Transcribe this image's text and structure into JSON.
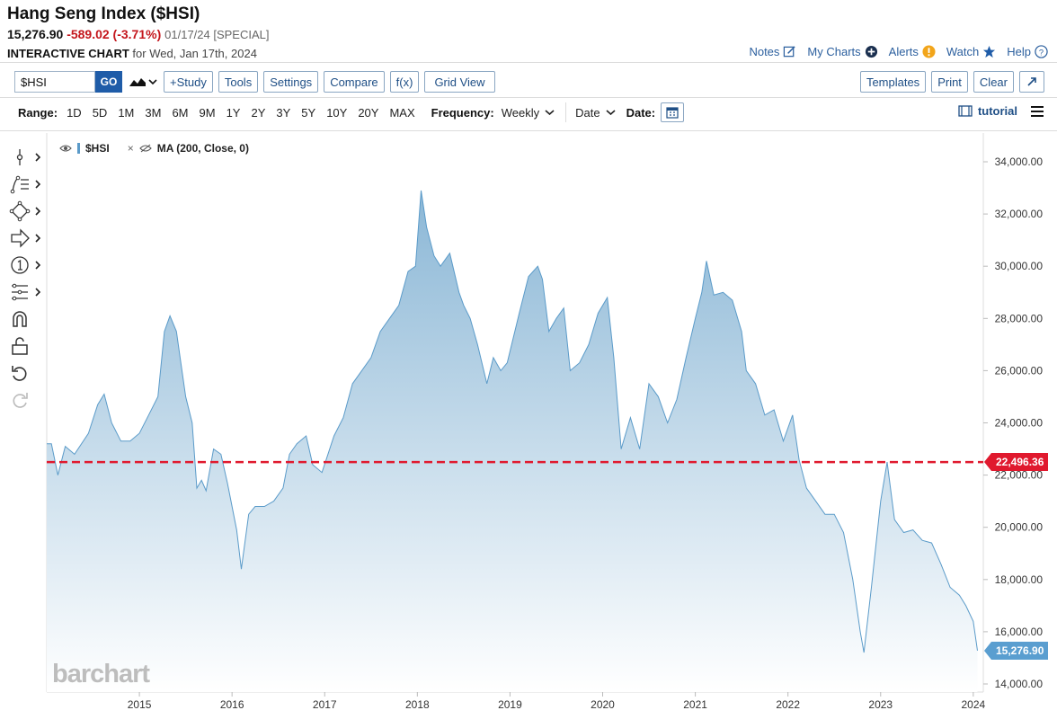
{
  "header": {
    "title": "Hang Seng Index ($HSI)",
    "last": "15,276.90",
    "change": "-589.02 (-3.71%)",
    "meta": "01/17/24 [SPECIAL]",
    "sub_strong": "INTERACTIVE CHART",
    "sub_rest": "for Wed, Jan 17th, 2024"
  },
  "toplinks": {
    "notes": "Notes",
    "mycharts": "My Charts",
    "alerts": "Alerts",
    "watch": "Watch",
    "help": "Help"
  },
  "toolbar": {
    "symbol": "$HSI",
    "go": "GO",
    "study": "+Study",
    "tools": "Tools",
    "settings": "Settings",
    "compare": "Compare",
    "fx": "f(x)",
    "grid": "Grid View",
    "templates": "Templates",
    "print": "Print",
    "clear": "Clear"
  },
  "rangebar": {
    "label": "Range:",
    "ranges": [
      "1D",
      "5D",
      "1M",
      "3M",
      "6M",
      "9M",
      "1Y",
      "2Y",
      "3Y",
      "5Y",
      "10Y",
      "20Y",
      "MAX"
    ],
    "frequency_label": "Frequency:",
    "frequency": "Weekly",
    "date_mode": "Date",
    "date_label": "Date:",
    "tutorial": "tutorial"
  },
  "legend": {
    "series": "$HSI",
    "ma": "MA (200, Close, 0)"
  },
  "watermark": "barchart",
  "colors": {
    "accent": "#1f5ca8",
    "area_top": "#8bb7d6",
    "area_line": "#5b9bc9",
    "ma_line": "#e0192e",
    "down": "#c4161c"
  },
  "chart_data": {
    "type": "area",
    "title": "Hang Seng Index ($HSI)",
    "frequency": "Weekly",
    "x_ticks": [
      "2015",
      "2016",
      "2017",
      "2018",
      "2019",
      "2020",
      "2021",
      "2022",
      "2023",
      "2024"
    ],
    "y_ticks": [
      "14,000.00",
      "16,000.00",
      "18,000.00",
      "20,000.00",
      "22,000.00",
      "24,000.00",
      "26,000.00",
      "28,000.00",
      "30,000.00",
      "32,000.00",
      "34,000.00"
    ],
    "ylim": [
      14000,
      34600
    ],
    "grid": false,
    "x": [
      2014.05,
      2014.12,
      2014.2,
      2014.3,
      2014.45,
      2014.55,
      2014.62,
      2014.7,
      2014.8,
      2014.9,
      2015.0,
      2015.1,
      2015.2,
      2015.27,
      2015.33,
      2015.4,
      2015.44,
      2015.5,
      2015.57,
      2015.62,
      2015.67,
      2015.72,
      2015.8,
      2015.88,
      2015.95,
      2016.05,
      2016.1,
      2016.18,
      2016.25,
      2016.35,
      2016.45,
      2016.55,
      2016.62,
      2016.7,
      2016.8,
      2016.87,
      2016.97,
      2017.1,
      2017.2,
      2017.3,
      2017.4,
      2017.5,
      2017.6,
      2017.7,
      2017.8,
      2017.9,
      2017.98,
      2018.04,
      2018.1,
      2018.18,
      2018.25,
      2018.35,
      2018.45,
      2018.5,
      2018.57,
      2018.65,
      2018.75,
      2018.82,
      2018.9,
      2018.97,
      2019.1,
      2019.2,
      2019.3,
      2019.35,
      2019.42,
      2019.5,
      2019.58,
      2019.65,
      2019.75,
      2019.85,
      2019.95,
      2020.05,
      2020.12,
      2020.2,
      2020.3,
      2020.4,
      2020.5,
      2020.6,
      2020.7,
      2020.8,
      2020.9,
      2021.0,
      2021.07,
      2021.12,
      2021.2,
      2021.3,
      2021.4,
      2021.5,
      2021.55,
      2021.65,
      2021.75,
      2021.85,
      2021.95,
      2022.05,
      2022.12,
      2022.2,
      2022.3,
      2022.4,
      2022.5,
      2022.6,
      2022.7,
      2022.78,
      2022.82,
      2022.9,
      2023.0,
      2023.07,
      2023.15,
      2023.25,
      2023.35,
      2023.45,
      2023.55,
      2023.65,
      2023.75,
      2023.85,
      2023.92,
      2024.0,
      2024.045
    ],
    "values": [
      23200,
      22000,
      23100,
      22800,
      23600,
      24700,
      25100,
      24000,
      23300,
      23300,
      23600,
      24300,
      25000,
      27500,
      28100,
      27500,
      26500,
      25000,
      24000,
      21500,
      21800,
      21400,
      23000,
      22800,
      21700,
      19900,
      18400,
      20500,
      20800,
      20800,
      21000,
      21500,
      22800,
      23200,
      23500,
      22400,
      22100,
      23500,
      24200,
      25500,
      26000,
      26500,
      27500,
      28000,
      28500,
      29800,
      30000,
      32900,
      31500,
      30400,
      30000,
      30500,
      29000,
      28500,
      28000,
      27000,
      25500,
      26500,
      26000,
      26300,
      28200,
      29600,
      30000,
      29500,
      27500,
      28000,
      28400,
      26000,
      26300,
      27000,
      28200,
      28800,
      26500,
      23000,
      24200,
      23000,
      25500,
      25000,
      24000,
      24900,
      26500,
      28000,
      29000,
      30200,
      28900,
      29000,
      28700,
      27500,
      26000,
      25500,
      24300,
      24500,
      23300,
      24300,
      22600,
      21500,
      21000,
      20500,
      20500,
      19800,
      18000,
      16000,
      15200,
      17700,
      21000,
      22500,
      20300,
      19800,
      19900,
      19500,
      19400,
      18600,
      17700,
      17400,
      17000,
      16400,
      15277
    ],
    "series": [
      {
        "name": "$HSI"
      },
      {
        "name": "MA (200, Close, 0)",
        "value": 22496.36
      }
    ],
    "labels": {
      "ma_value": "22,496.36",
      "last_value": "15,276.90"
    }
  }
}
